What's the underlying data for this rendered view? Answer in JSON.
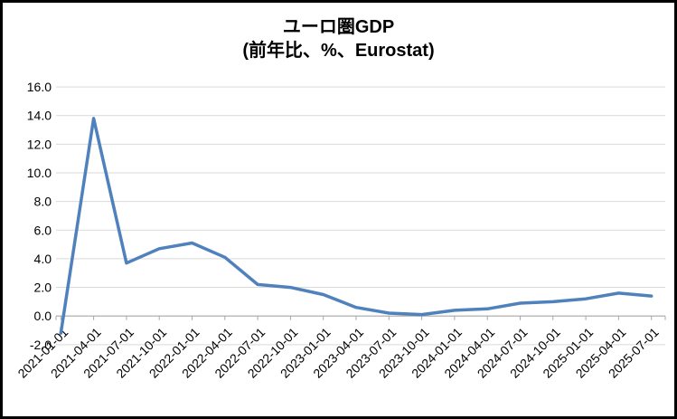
{
  "title": {
    "line1": "ユーロ圏GDP",
    "line2": "(前年比、%、Eurostat)"
  },
  "chart_data": {
    "type": "line",
    "title": "ユーロ圏GDP (前年比、%、Eurostat)",
    "categories": [
      "2021-01-01",
      "2021-04-01",
      "2021-07-01",
      "2021-10-01",
      "2022-01-01",
      "2022-04-01",
      "2022-07-01",
      "2022-10-01",
      "2023-01-01",
      "2023-04-01",
      "2023-07-01",
      "2023-10-01",
      "2024-01-01",
      "2024-04-01",
      "2024-07-01",
      "2024-10-01",
      "2025-01-01",
      "2025-04-01",
      "2025-07-01"
    ],
    "series": [
      {
        "name": "ユーロ圏GDP前年比",
        "values": [
          -1.2,
          13.8,
          3.7,
          4.7,
          5.1,
          4.1,
          2.2,
          2.0,
          1.5,
          0.6,
          0.2,
          0.1,
          0.4,
          0.5,
          0.9,
          1.0,
          1.2,
          1.6,
          1.4
        ],
        "color": "#4F81BD"
      }
    ],
    "xlabel": "",
    "ylabel": "",
    "ylim": [
      -2.0,
      16.0
    ],
    "ytick_step": 2.0,
    "ytick_format_decimals": 1,
    "grid": true,
    "legend_position": "none",
    "x_label_rotation_deg": -45,
    "colors": {
      "line": "#4F81BD",
      "gridline": "#D9D9D9",
      "axis": "#A6A6A6",
      "text": "#000000",
      "background": "#FFFFFF",
      "border": "#000000"
    }
  }
}
